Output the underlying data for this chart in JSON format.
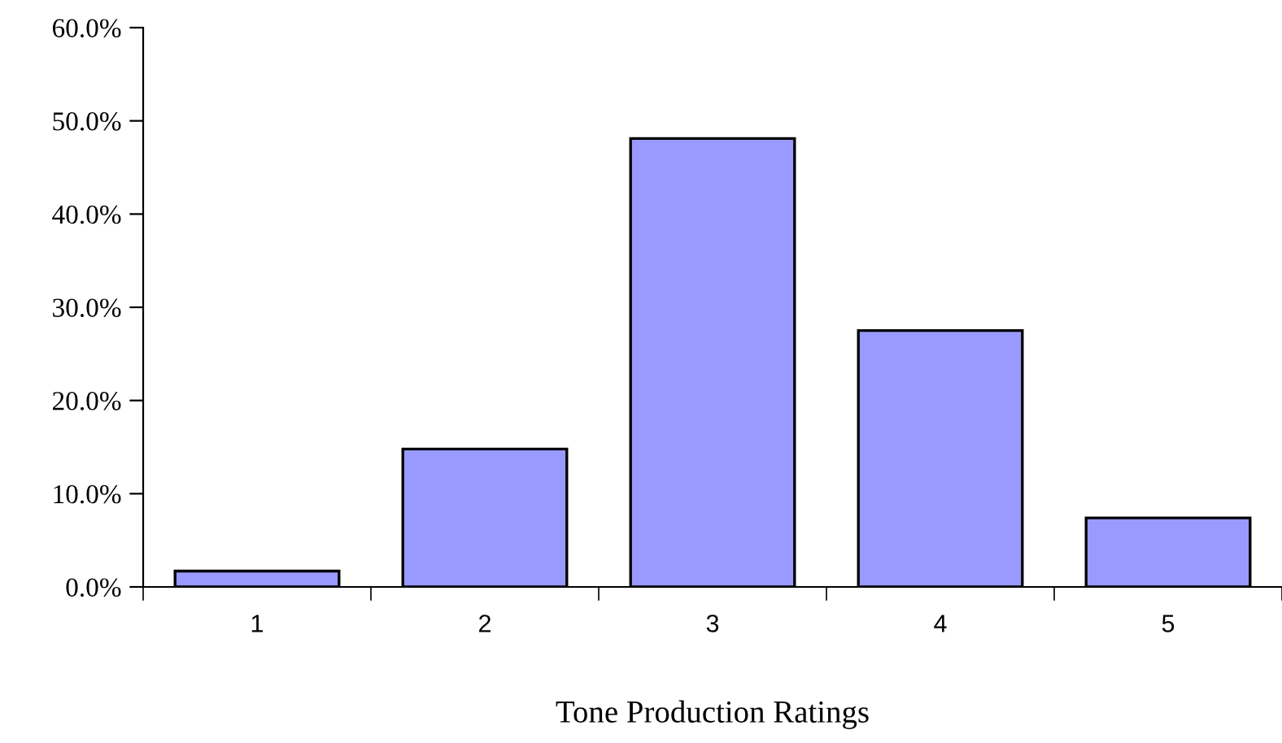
{
  "chart_data": {
    "type": "bar",
    "xlabel": "Tone Production Ratings",
    "categories": [
      "1",
      "2",
      "3",
      "4",
      "5"
    ],
    "values": [
      1.7,
      14.8,
      48.1,
      27.5,
      7.4
    ],
    "color": "#9999ff",
    "ylim": [
      0,
      60
    ],
    "yticks": [
      {
        "value": 0,
        "label": "0.0%"
      },
      {
        "value": 10,
        "label": "10.0%"
      },
      {
        "value": 20,
        "label": "20.0%"
      },
      {
        "value": 30,
        "label": "30.0%"
      },
      {
        "value": 40,
        "label": "40.0%"
      },
      {
        "value": 50,
        "label": "50.0%"
      },
      {
        "value": 60,
        "label": "60.0%"
      }
    ],
    "grid": false,
    "legend": false
  }
}
